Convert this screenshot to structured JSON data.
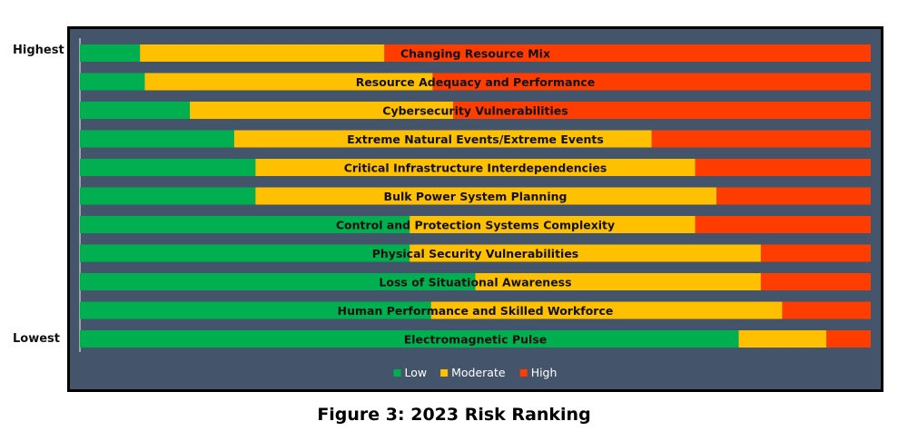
{
  "labels": {
    "highest": "Highest",
    "lowest": "Lowest"
  },
  "caption": "Figure 3: 2023 Risk Ranking",
  "chart_data": {
    "type": "bar",
    "orientation": "horizontal",
    "stacked": "100%",
    "categories": [
      "Changing Resource Mix",
      "Resource Adequacy and Performance",
      "Cybersecurity Vulnerabilities",
      "Extreme Natural Events/Extreme Events",
      "Critical Infrastructure Interdependencies",
      "Bulk Power System Planning",
      "Control and Protection Systems Complexity",
      "Physical Security Vulnerabilities",
      "Loss of Situational Awareness",
      "Human Performance and Skilled Workforce",
      "Electromagnetic Pulse"
    ],
    "series": [
      {
        "name": "Low",
        "color": "#00b050",
        "values": [
          7.6,
          8.2,
          13.9,
          19.5,
          22.2,
          22.2,
          41.7,
          41.7,
          50.0,
          44.4,
          83.3
        ]
      },
      {
        "name": "Moderate",
        "color": "#ffc000",
        "values": [
          30.9,
          36.4,
          33.3,
          52.8,
          55.6,
          58.3,
          36.1,
          44.4,
          36.1,
          44.4,
          11.1
        ]
      },
      {
        "name": "High",
        "color": "#ff3d00",
        "values": [
          61.5,
          55.4,
          52.8,
          27.7,
          22.2,
          19.5,
          22.2,
          13.9,
          13.9,
          11.2,
          5.6
        ]
      }
    ],
    "xlim": [
      0,
      100
    ],
    "legend": {
      "position": "bottom"
    },
    "grid": false
  }
}
